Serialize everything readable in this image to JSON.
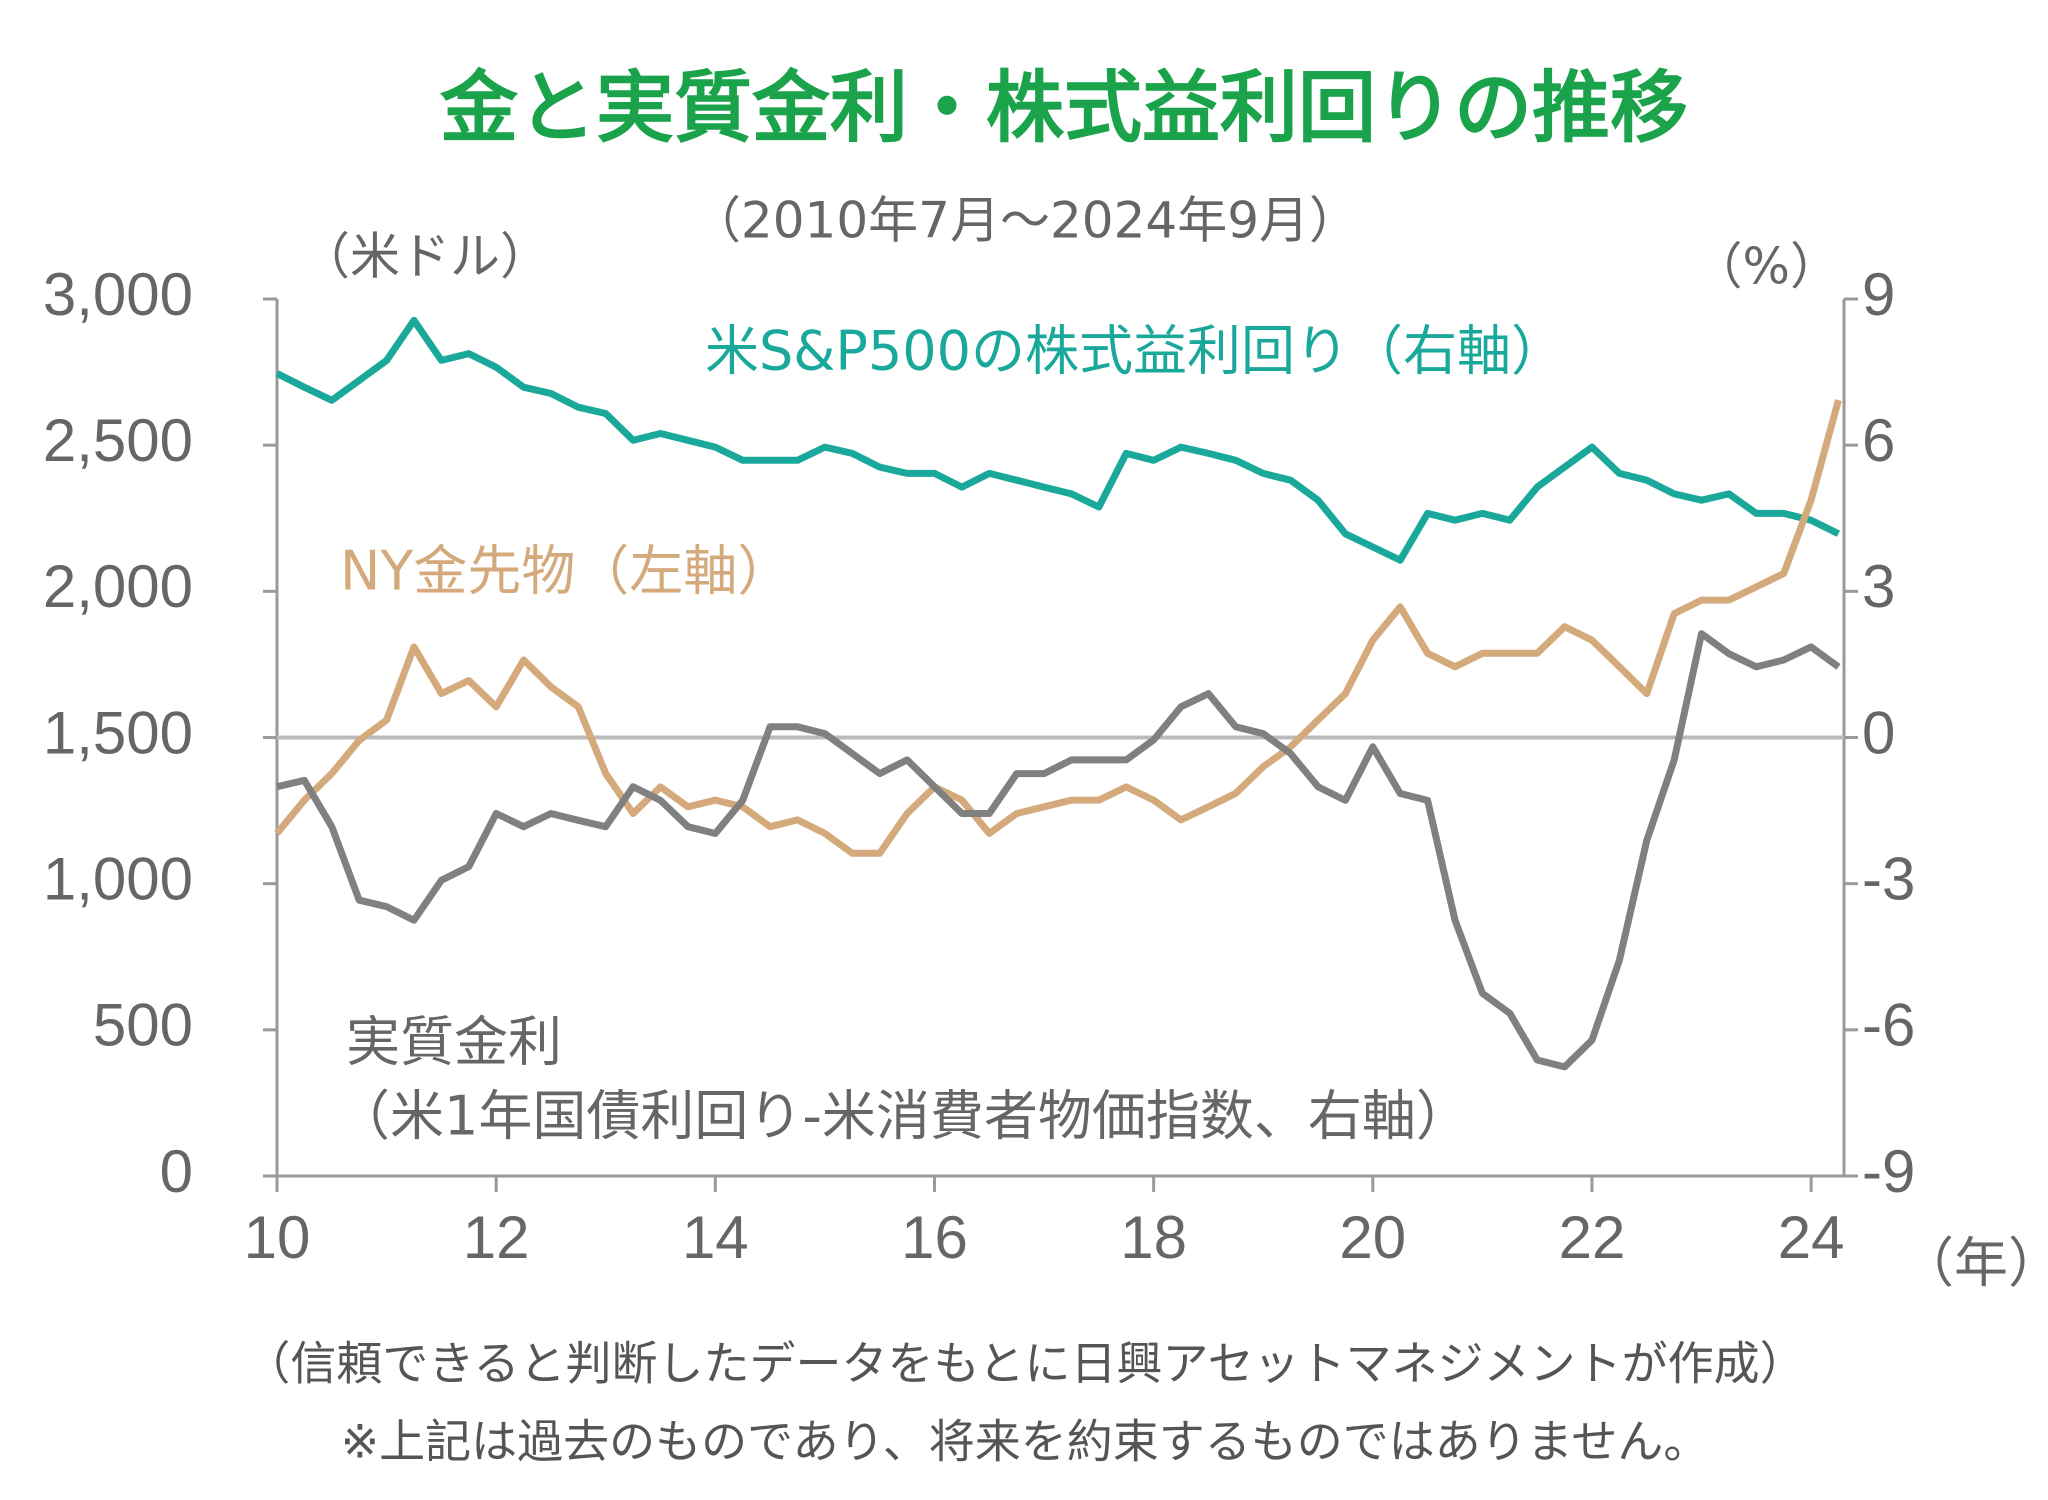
{
  "chart_data": {
    "type": "line",
    "title": "金と実質金利・株式益利回りの推移",
    "subtitle": "（2010年7月～2024年9月）",
    "y_unit": "（米ドル）",
    "y2_unit": "（%）",
    "x_unit": "（年）",
    "real_rate_note": "（米1年国債利回り-米消費者物価指数、右軸）",
    "footnotes": [
      "（信頼できると判断したデータをもとに日興アセットマネジメントが作成）",
      "※上記は過去のものであり、将来を約束するものではありません。"
    ],
    "x": [
      10,
      10.25,
      10.5,
      10.75,
      11,
      11.25,
      11.5,
      11.75,
      12,
      12.25,
      12.5,
      12.75,
      13,
      13.25,
      13.5,
      13.75,
      14,
      14.25,
      14.5,
      14.75,
      15,
      15.25,
      15.5,
      15.75,
      16,
      16.25,
      16.5,
      16.75,
      17,
      17.25,
      17.5,
      17.75,
      18,
      18.25,
      18.5,
      18.75,
      19,
      19.25,
      19.5,
      19.75,
      20,
      20.25,
      20.5,
      20.75,
      21,
      21.25,
      21.5,
      21.75,
      22,
      22.25,
      22.5,
      22.75,
      23,
      23.25,
      23.5,
      23.75,
      24,
      24.25
    ],
    "xlim": [
      10,
      24.3
    ],
    "xticks": [
      10,
      12,
      14,
      16,
      18,
      20,
      22,
      24
    ],
    "ylim": [
      0,
      3000
    ],
    "yticks": [
      0,
      {
        "value": 500,
        "label": "500"
      },
      {
        "value": 1000,
        "label": "1,000"
      },
      {
        "value": 1500,
        "label": "1,500"
      },
      {
        "value": 2000,
        "label": "2,000"
      },
      {
        "value": 2500,
        "label": "2,500"
      },
      {
        "value": 3000,
        "label": "3,000"
      }
    ],
    "y2lim": [
      -9,
      9
    ],
    "y2ticks": [
      -9,
      -6,
      -3,
      0,
      3,
      6,
      9
    ],
    "reference_line": {
      "axis": "y2",
      "value": 0
    },
    "series": [
      {
        "name": "米S&P500の株式益利回り（右軸）",
        "color": "#1aa89a",
        "axis": "y2",
        "values": [
          7.47,
          7.19,
          6.92,
          7.33,
          7.74,
          8.56,
          7.74,
          7.88,
          7.6,
          7.19,
          7.06,
          6.78,
          6.65,
          6.1,
          6.24,
          6.1,
          5.96,
          5.69,
          5.69,
          5.69,
          5.96,
          5.83,
          5.55,
          5.42,
          5.42,
          5.14,
          5.42,
          5.28,
          5.14,
          5.0,
          4.73,
          5.83,
          5.69,
          5.96,
          5.83,
          5.69,
          5.42,
          5.28,
          4.87,
          4.18,
          3.91,
          3.64,
          4.6,
          4.46,
          4.6,
          4.46,
          5.14,
          5.55,
          5.96,
          5.42,
          5.28,
          5.0,
          4.87,
          5.0,
          4.6,
          4.6,
          4.46,
          4.18
        ]
      },
      {
        "name": "NY金先物（左軸）",
        "color": "#d4aa7d",
        "values": [
          1172,
          1286,
          1377,
          1490,
          1560,
          1810,
          1650,
          1695,
          1605,
          1765,
          1673,
          1605,
          1377,
          1240,
          1331,
          1263,
          1286,
          1263,
          1195,
          1218,
          1172,
          1104,
          1104,
          1240,
          1331,
          1286,
          1172,
          1240,
          1263,
          1286,
          1286,
          1331,
          1286,
          1218,
          1263,
          1309,
          1400,
          1468,
          1560,
          1650,
          1833,
          1947,
          1788,
          1742,
          1788,
          1788,
          1788,
          1879,
          1833,
          1742,
          1650,
          1924,
          1970,
          1970,
          2015,
          2061,
          2312,
          2654
        ]
      },
      {
        "name": "実質金利",
        "color": "#808080",
        "axis": "y2",
        "values": [
          -1.01,
          -0.88,
          -1.83,
          -3.34,
          -3.47,
          -3.75,
          -2.93,
          -2.65,
          -1.56,
          -1.83,
          -1.56,
          -1.7,
          -1.83,
          -1.01,
          -1.29,
          -1.83,
          -1.97,
          -1.29,
          0.22,
          0.22,
          0.08,
          -0.33,
          -0.74,
          -0.46,
          -1.01,
          -1.56,
          -1.56,
          -0.74,
          -0.74,
          -0.46,
          -0.46,
          -0.46,
          -0.05,
          0.63,
          0.9,
          0.22,
          0.08,
          -0.33,
          -1.01,
          -1.29,
          -0.19,
          -1.15,
          -1.29,
          -3.75,
          -5.25,
          -5.66,
          -6.62,
          -6.76,
          -6.21,
          -4.57,
          -2.11,
          -0.46,
          2.13,
          1.72,
          1.45,
          1.59,
          1.86,
          1.45
        ]
      }
    ]
  }
}
